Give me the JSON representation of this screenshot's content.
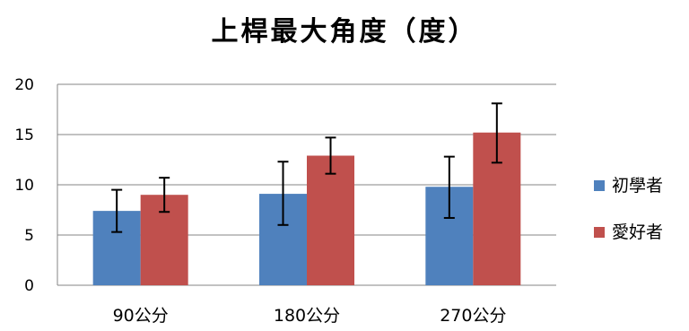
{
  "chart_data": {
    "type": "bar",
    "title": "上桿最大角度（度）",
    "xlabel": "",
    "ylabel": "",
    "categories": [
      "90公分",
      "180公分",
      "270公分"
    ],
    "ylim": [
      0,
      20
    ],
    "yticks": [
      0,
      5,
      10,
      15,
      20
    ],
    "grid": true,
    "legend_position": "right",
    "error_bars": true,
    "series": [
      {
        "name": "初學者",
        "color": "#4F81BD",
        "values": [
          7.4,
          9.1,
          9.8
        ],
        "error_low": [
          5.3,
          6.0,
          6.7
        ],
        "error_high": [
          9.5,
          12.3,
          12.8
        ]
      },
      {
        "name": "愛好者",
        "color": "#C0504D",
        "values": [
          9.0,
          12.9,
          15.2
        ],
        "error_low": [
          7.3,
          11.1,
          12.2
        ],
        "error_high": [
          10.7,
          14.7,
          18.1
        ]
      }
    ]
  }
}
